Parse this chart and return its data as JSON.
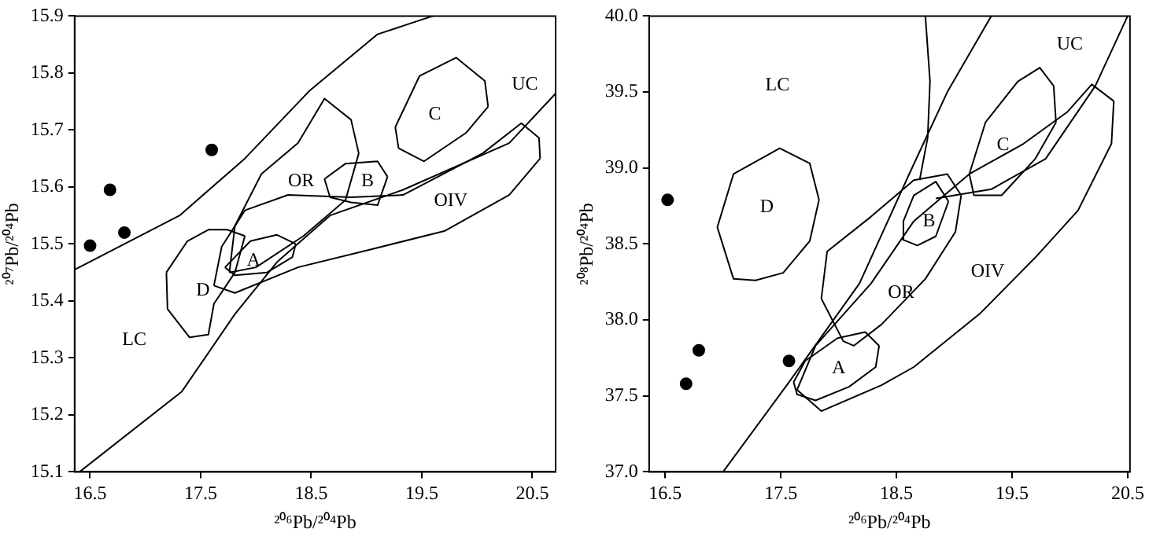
{
  "chart_data": [
    {
      "type": "scatter",
      "xlabel": "²⁰⁶Pb/²⁰⁴Pb",
      "ylabel": "²⁰⁷Pb/²⁰⁴Pb",
      "xlim": [
        16.36,
        20.71
      ],
      "xticks": [
        16.5,
        17.5,
        18.5,
        19.5,
        20.5
      ],
      "ylim": [
        15.1,
        15.9
      ],
      "yticks": [
        15.1,
        15.2,
        15.3,
        15.4,
        15.5,
        15.6,
        15.7,
        15.8,
        15.9
      ],
      "grid": false,
      "legend": false,
      "marker": "circle",
      "series": [
        {
          "type": "scatter",
          "color": "#000000",
          "x": [
            16.5,
            16.68,
            16.81,
            17.6
          ],
          "values": [
            15.497,
            15.595,
            15.52,
            15.665
          ]
        },
        {
          "type": "line",
          "marker": "none",
          "color": "#000000",
          "x": [
            16.36,
            17.31,
            17.9,
            18.48,
            19.1,
            19.6
          ],
          "values": [
            15.455,
            15.55,
            15.65,
            15.768,
            15.868,
            15.9
          ]
        },
        {
          "type": "line",
          "marker": "none",
          "color": "#000000",
          "x": [
            16.405,
            17.33,
            17.81,
            18.19,
            18.67,
            19.33,
            20.29,
            20.71
          ],
          "values": [
            15.1,
            15.241,
            15.377,
            15.468,
            15.55,
            15.595,
            15.677,
            15.764
          ]
        },
        {
          "type": "line",
          "marker": "none",
          "color": "#000000",
          "x": [
            17.19,
            17.38,
            17.57,
            17.74,
            17.9
          ],
          "values": [
            15.45,
            15.505,
            15.525,
            15.525,
            15.514
          ]
        },
        {
          "type": "line",
          "marker": "none",
          "color": "#000000",
          "x": [
            17.19,
            17.2,
            17.4,
            17.57,
            17.62,
            17.81,
            17.9
          ],
          "values": [
            15.45,
            15.386,
            15.336,
            15.341,
            15.395,
            15.45,
            15.514
          ]
        },
        {
          "type": "line",
          "marker": "none",
          "color": "#000000",
          "x": [
            17.72,
            17.95,
            18.19,
            18.36
          ],
          "values": [
            15.459,
            15.505,
            15.516,
            15.5
          ]
        },
        {
          "type": "line",
          "marker": "none",
          "color": "#000000",
          "x": [
            17.72,
            17.81,
            18.1,
            18.33,
            18.36
          ],
          "values": [
            15.459,
            15.445,
            15.45,
            15.477,
            15.5
          ]
        },
        {
          "type": "line",
          "marker": "none",
          "color": "#000000",
          "x": [
            17.76,
            17.81,
            18.05,
            18.38,
            18.62,
            18.86,
            18.93
          ],
          "values": [
            15.45,
            15.532,
            15.623,
            15.677,
            15.755,
            15.718,
            15.659
          ]
        },
        {
          "type": "line",
          "marker": "none",
          "color": "#000000",
          "x": [
            17.76,
            18.0,
            18.43,
            18.81,
            18.93
          ],
          "values": [
            15.45,
            15.459,
            15.514,
            15.577,
            15.659
          ]
        },
        {
          "type": "line",
          "marker": "none",
          "color": "#000000",
          "x": [
            17.62,
            17.69,
            17.9,
            18.29,
            18.86,
            19.33,
            20.05,
            20.4,
            20.56,
            20.57
          ],
          "values": [
            15.427,
            15.495,
            15.559,
            15.586,
            15.582,
            15.586,
            15.659,
            15.712,
            15.686,
            15.65
          ]
        },
        {
          "type": "line",
          "marker": "none",
          "color": "#000000",
          "x": [
            17.62,
            17.81,
            18.38,
            19.05,
            19.71,
            20.29,
            20.57
          ],
          "values": [
            15.427,
            15.414,
            15.459,
            15.491,
            15.523,
            15.586,
            15.65
          ]
        },
        {
          "type": "line",
          "marker": "none",
          "color": "#000000",
          "x": [
            18.62,
            18.81,
            19.1,
            19.19
          ],
          "values": [
            15.614,
            15.641,
            15.645,
            15.618
          ]
        },
        {
          "type": "line",
          "marker": "none",
          "color": "#000000",
          "x": [
            18.62,
            18.67,
            18.86,
            19.1,
            19.19
          ],
          "values": [
            15.614,
            15.582,
            15.573,
            15.568,
            15.618
          ]
        },
        {
          "type": "line",
          "marker": "none",
          "color": "#000000",
          "x": [
            19.26,
            19.48,
            19.81,
            20.07,
            20.1
          ],
          "values": [
            15.705,
            15.795,
            15.827,
            15.786,
            15.741
          ]
        },
        {
          "type": "line",
          "marker": "none",
          "color": "#000000",
          "x": [
            19.26,
            19.29,
            19.52,
            19.9,
            20.1
          ],
          "values": [
            15.705,
            15.668,
            15.645,
            15.695,
            15.741
          ]
        }
      ],
      "annotations": [
        "OR",
        "B",
        "C",
        "UC",
        "OIV",
        "A",
        "D",
        "LC"
      ]
    },
    {
      "type": "scatter",
      "xlabel": "²⁰⁶Pb/²⁰⁴Pb",
      "ylabel": "²⁰⁸Pb/²⁰⁴Pb",
      "xlim": [
        16.36,
        20.52
      ],
      "xticks": [
        16.5,
        17.5,
        18.5,
        19.5,
        20.5
      ],
      "ylim": [
        37,
        40
      ],
      "yticks": [
        {
          "value": 37,
          "label": "37.0"
        },
        37.5,
        {
          "value": 38,
          "label": "38.0"
        },
        38.5,
        {
          "value": 39,
          "label": "39.0"
        },
        39.5,
        {
          "value": 40,
          "label": "40.0"
        }
      ],
      "grid": false,
      "legend": false,
      "marker": "circle",
      "series": [
        {
          "type": "scatter",
          "color": "#000000",
          "x": [
            16.52,
            16.79,
            16.68,
            17.57
          ],
          "values": [
            38.79,
            37.8,
            37.58,
            37.73
          ]
        },
        {
          "type": "line",
          "marker": "none",
          "color": "#000000",
          "x": [
            18.75,
            18.79,
            18.77,
            18.7
          ],
          "values": [
            40.0,
            39.57,
            39.2,
            38.92
          ]
        },
        {
          "type": "line",
          "marker": "none",
          "color": "#000000",
          "x": [
            19.32,
            18.94,
            18.61,
            18.18,
            17.57,
            17.0
          ],
          "values": [
            40.0,
            39.5,
            38.96,
            38.24,
            37.59,
            37.0
          ]
        },
        {
          "type": "line",
          "marker": "none",
          "color": "#000000",
          "x": [
            20.5,
            20.22,
            19.79,
            19.32,
            18.84
          ],
          "values": [
            40.0,
            39.54,
            39.06,
            38.86,
            38.8
          ]
        },
        {
          "type": "line",
          "marker": "none",
          "color": "#000000",
          "x": [
            17.64,
            17.85,
            18.37,
            18.65,
            19.22,
            19.7,
            20.07,
            20.36,
            20.38
          ],
          "values": [
            37.54,
            37.4,
            37.57,
            37.69,
            38.04,
            38.41,
            38.72,
            39.16,
            39.44
          ]
        },
        {
          "type": "line",
          "marker": "none",
          "color": "#000000",
          "x": [
            17.64,
            17.8,
            18.28,
            18.65,
            19.13,
            19.6,
            19.98,
            20.19,
            20.38
          ],
          "values": [
            37.54,
            37.83,
            38.24,
            38.65,
            38.96,
            39.16,
            39.37,
            39.55,
            39.44
          ]
        },
        {
          "type": "line",
          "marker": "none",
          "color": "#000000",
          "x": [
            17.85,
            17.9,
            18.28,
            18.65,
            18.94,
            19.06
          ],
          "values": [
            38.14,
            38.45,
            38.68,
            38.92,
            38.96,
            38.82
          ]
        },
        {
          "type": "line",
          "marker": "none",
          "color": "#000000",
          "x": [
            17.85,
            18.04,
            18.13,
            18.37,
            18.75,
            19.01,
            19.06
          ],
          "values": [
            38.14,
            37.86,
            37.83,
            37.97,
            38.27,
            38.58,
            38.82
          ]
        },
        {
          "type": "line",
          "marker": "none",
          "color": "#000000",
          "x": [
            17.61,
            17.71,
            17.99,
            18.23,
            18.35
          ],
          "values": [
            37.59,
            37.73,
            37.88,
            37.92,
            37.83
          ]
        },
        {
          "type": "line",
          "marker": "none",
          "color": "#000000",
          "x": [
            17.61,
            17.64,
            17.8,
            18.09,
            18.32,
            18.35
          ],
          "values": [
            37.59,
            37.51,
            37.47,
            37.56,
            37.69,
            37.83
          ]
        },
        {
          "type": "line",
          "marker": "none",
          "color": "#000000",
          "x": [
            18.55,
            18.56,
            18.65,
            18.84,
            18.95
          ],
          "values": [
            38.53,
            38.65,
            38.82,
            38.91,
            38.78
          ]
        },
        {
          "type": "line",
          "marker": "none",
          "color": "#000000",
          "x": [
            18.55,
            18.68,
            18.84,
            18.95
          ],
          "values": [
            38.53,
            38.49,
            38.55,
            38.78
          ]
        },
        {
          "type": "line",
          "marker": "none",
          "color": "#000000",
          "x": [
            19.13,
            19.27,
            19.55,
            19.74,
            19.86,
            19.88
          ],
          "values": [
            38.96,
            39.3,
            39.57,
            39.66,
            39.54,
            39.3
          ]
        },
        {
          "type": "line",
          "marker": "none",
          "color": "#000000",
          "x": [
            19.13,
            19.17,
            19.41,
            19.7,
            19.88
          ],
          "values": [
            38.96,
            38.82,
            38.82,
            39.06,
            39.3
          ]
        },
        {
          "type": "line",
          "marker": "none",
          "color": "#000000",
          "x": [
            16.95,
            17.09,
            17.49,
            17.75,
            17.83
          ],
          "values": [
            38.61,
            38.96,
            39.13,
            39.03,
            38.79
          ]
        },
        {
          "type": "line",
          "marker": "none",
          "color": "#000000",
          "x": [
            16.95,
            17.09,
            17.28,
            17.52,
            17.75,
            17.83
          ],
          "values": [
            38.61,
            38.27,
            38.26,
            38.31,
            38.52,
            38.79
          ]
        }
      ],
      "annotations": [
        "LC",
        "D",
        "UC",
        "C",
        "B",
        "OIV",
        "OR",
        "A"
      ]
    }
  ]
}
